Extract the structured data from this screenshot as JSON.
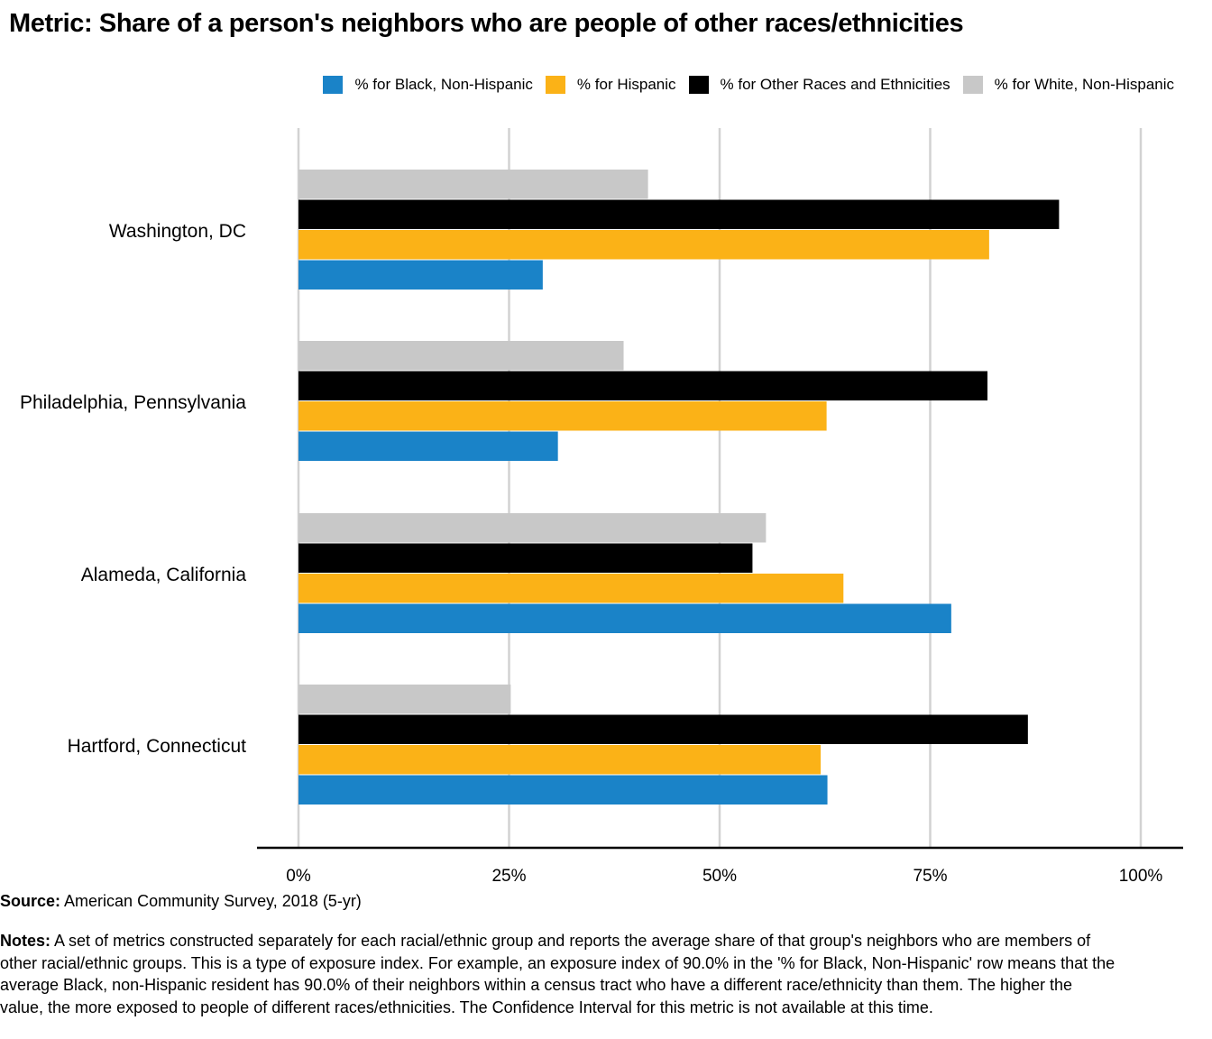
{
  "title": "Metric: Share of a person's neighbors who are people of other races/ethnicities",
  "chart_data": {
    "type": "bar",
    "orientation": "horizontal",
    "categories": [
      "Washington, DC",
      "Philadelphia, Pennsylvania",
      "Alameda, California",
      "Hartford, Connecticut"
    ],
    "series": [
      {
        "name": "% for Black, Non-Hispanic",
        "color": "#1a83c8",
        "values": [
          29.0,
          30.8,
          77.5,
          62.8
        ]
      },
      {
        "name": "% for Hispanic",
        "color": "#fbb217",
        "values": [
          82.0,
          62.7,
          64.7,
          62.0
        ]
      },
      {
        "name": "% for Other Races and Ethnicities",
        "color": "#000000",
        "values": [
          90.3,
          81.8,
          53.9,
          86.6
        ]
      },
      {
        "name": "% for White, Non-Hispanic",
        "color": "#c8c8c8",
        "values": [
          41.5,
          38.6,
          55.5,
          25.2
        ]
      }
    ],
    "xlim": [
      0,
      100
    ],
    "xticks": [
      0,
      25,
      50,
      75,
      100
    ],
    "xtick_labels": [
      "0%",
      "25%",
      "50%",
      "75%",
      "100%"
    ],
    "grid": true,
    "legend_position": "top-right"
  },
  "source": {
    "label": "Source:",
    "text": " American Community Survey, 2018 (5-yr)"
  },
  "notes": {
    "label": "Notes:",
    "text": " A set of metrics constructed separately for each racial/ethnic group and reports the average share of that group's neighbors who are members of other racial/ethnic groups. This is a type of exposure index. For example, an exposure index of 90.0% in the '% for Black, Non-Hispanic' row means that the average Black, non-Hispanic resident has 90.0% of their neighbors within a census tract who have a different race/ethnicity than them. The higher the value, the more exposed to people of different races/ethnicities. The Confidence Interval for this metric is not available at this time."
  }
}
